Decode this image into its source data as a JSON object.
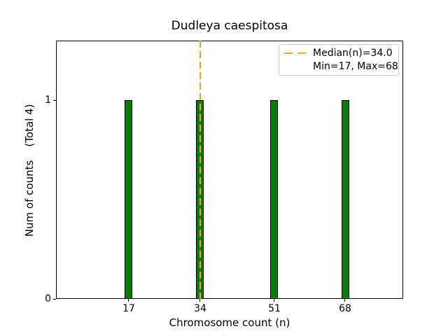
{
  "chart_data": {
    "type": "bar",
    "title": "Dudleya caespitosa",
    "xlabel": "Chromosome count (n)",
    "ylabel": "Num of counts    (Total 4)",
    "categories": [
      "17",
      "34",
      "51",
      "68"
    ],
    "values": [
      1,
      1,
      1,
      1
    ],
    "total_counts": 4,
    "yticks": [
      "0",
      "1"
    ],
    "ylim": [
      0,
      1.3
    ],
    "grid": "off",
    "bar_color": "#008000",
    "bar_edge_color": "#000000",
    "median_line": {
      "value": 34.0,
      "color": "#FFA500",
      "style": "dashed",
      "orientation": "vertical"
    },
    "stats": {
      "median": 34.0,
      "min": 17,
      "max": 68
    },
    "legend": {
      "position": "upper-right",
      "entries": [
        {
          "label": "Median(n)=34.0",
          "handle": "dashed-line",
          "color": "#FFA500"
        },
        {
          "label": "Min=17, Max=68",
          "handle": "none"
        }
      ]
    }
  }
}
